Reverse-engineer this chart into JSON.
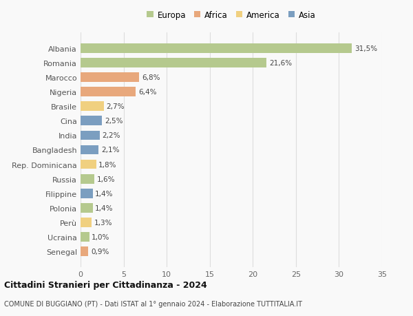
{
  "countries": [
    "Albania",
    "Romania",
    "Marocco",
    "Nigeria",
    "Brasile",
    "Cina",
    "India",
    "Bangladesh",
    "Rep. Dominicana",
    "Russia",
    "Filippine",
    "Polonia",
    "Perù",
    "Ucraina",
    "Senegal"
  ],
  "values": [
    31.5,
    21.6,
    6.8,
    6.4,
    2.7,
    2.5,
    2.2,
    2.1,
    1.8,
    1.6,
    1.4,
    1.4,
    1.3,
    1.0,
    0.9
  ],
  "labels": [
    "31,5%",
    "21,6%",
    "6,8%",
    "6,4%",
    "2,7%",
    "2,5%",
    "2,2%",
    "2,1%",
    "1,8%",
    "1,6%",
    "1,4%",
    "1,4%",
    "1,3%",
    "1,0%",
    "0,9%"
  ],
  "continents": [
    "Europa",
    "Europa",
    "Africa",
    "Africa",
    "America",
    "Asia",
    "Asia",
    "Asia",
    "America",
    "Europa",
    "Asia",
    "Europa",
    "America",
    "Europa",
    "Africa"
  ],
  "continent_colors": {
    "Europa": "#b5c98e",
    "Africa": "#e8a87c",
    "America": "#f0d080",
    "Asia": "#7b9ec0"
  },
  "legend_order": [
    "Europa",
    "Africa",
    "America",
    "Asia"
  ],
  "title": "Cittadini Stranieri per Cittadinanza - 2024",
  "subtitle": "COMUNE DI BUGGIANO (PT) - Dati ISTAT al 1° gennaio 2024 - Elaborazione TUTTITALIA.IT",
  "xlim": [
    0,
    35
  ],
  "xticks": [
    0,
    5,
    10,
    15,
    20,
    25,
    30,
    35
  ],
  "background_color": "#f9f9f9",
  "grid_color": "#dddddd",
  "bar_height": 0.65
}
